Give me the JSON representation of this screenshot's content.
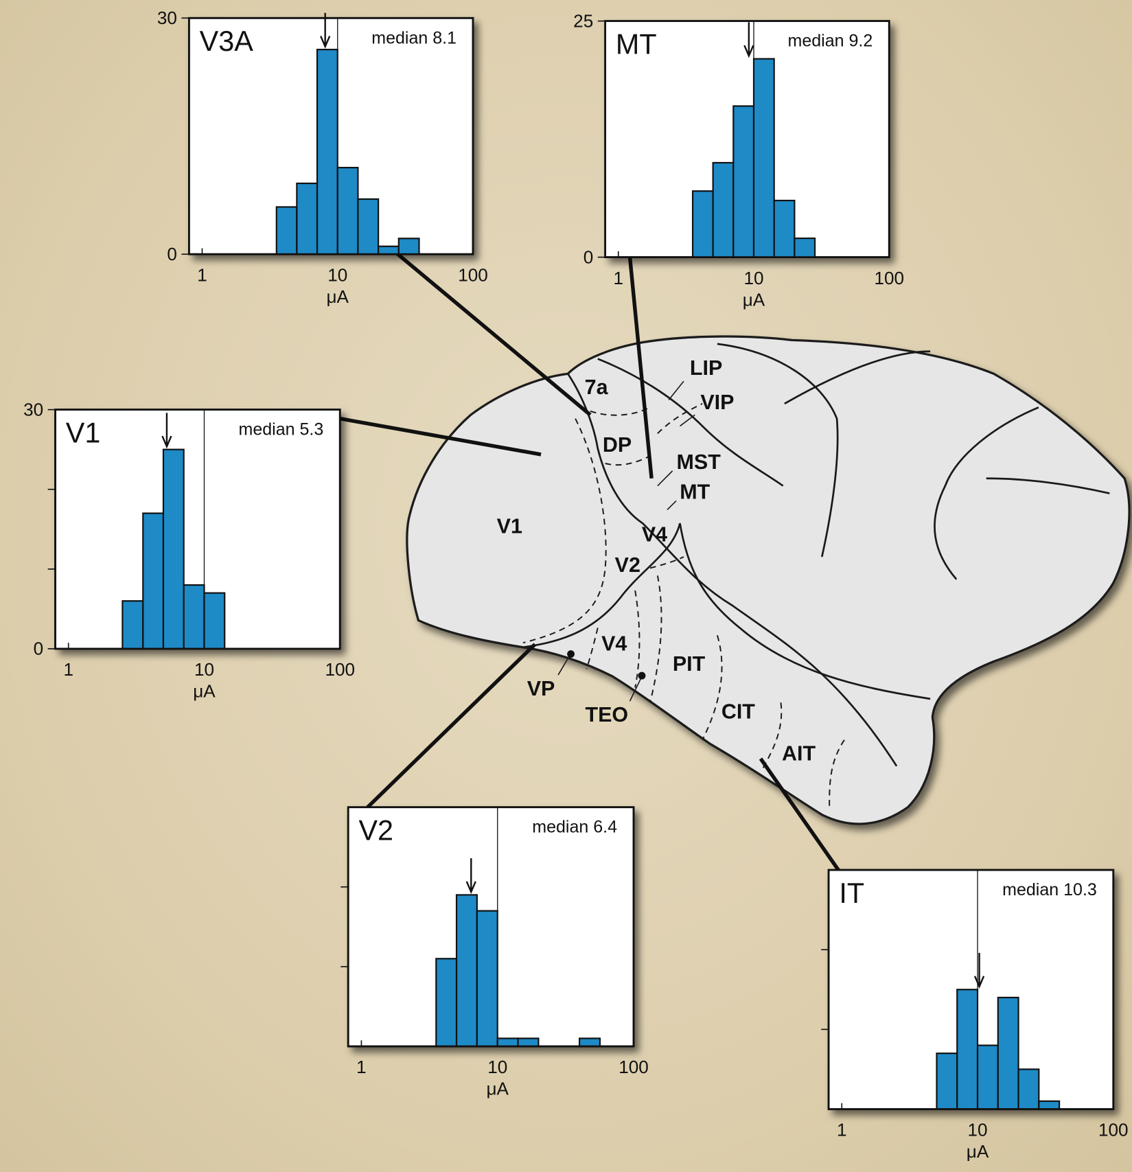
{
  "chart_data": [
    {
      "type": "histogram",
      "title": "V3A",
      "annotation": "median 8.1",
      "median": 8.1,
      "ref_x": 10,
      "xlabel": "μA",
      "xscale": "log",
      "xlim": [
        0.8,
        100
      ],
      "xticks": [
        1,
        10,
        100
      ],
      "ylim": [
        0,
        30
      ],
      "yticks": [
        0,
        30
      ],
      "color": "#1e8ac6",
      "bins": [
        3.54,
        5,
        7.07,
        10,
        14.14,
        20,
        28.28,
        40
      ],
      "counts": [
        6,
        9,
        26,
        11,
        7,
        1,
        2
      ]
    },
    {
      "type": "histogram",
      "title": "MT",
      "annotation": "median 9.2",
      "median": 9.2,
      "ref_x": 10,
      "xlabel": "μA",
      "xscale": "log",
      "xlim": [
        0.8,
        100
      ],
      "xticks": [
        1,
        10,
        100
      ],
      "ylim": [
        0,
        25
      ],
      "yticks": [
        0,
        25
      ],
      "color": "#1e8ac6",
      "bins": [
        3.54,
        5,
        7.07,
        10,
        14.14,
        20,
        28.28
      ],
      "counts": [
        7,
        10,
        16,
        21,
        6,
        2
      ]
    },
    {
      "type": "histogram",
      "title": "V1",
      "annotation": "median 5.3",
      "median": 5.3,
      "ref_x": 10,
      "xlabel": "μA",
      "xscale": "log",
      "xlim": [
        0.8,
        100
      ],
      "xticks": [
        1,
        10,
        100
      ],
      "ylim": [
        0,
        30
      ],
      "yticks": [
        0,
        30
      ],
      "minor_yticks": [
        10,
        20
      ],
      "color": "#1e8ac6",
      "bins": [
        2.5,
        3.54,
        5,
        7.07,
        10,
        14.14
      ],
      "counts": [
        6,
        17,
        25,
        8,
        7
      ]
    },
    {
      "type": "histogram",
      "title": "V2",
      "annotation": "median 6.4",
      "median": 6.4,
      "ref_x": 10,
      "xlabel": "μA",
      "xscale": "log",
      "xlim": [
        0.8,
        100
      ],
      "xticks": [
        1,
        10,
        100
      ],
      "ylim": [
        0,
        30
      ],
      "minor_yticks": [
        10,
        20
      ],
      "color": "#1e8ac6",
      "bins": [
        3.54,
        5,
        7.07,
        10,
        14.14,
        20,
        28.28,
        40,
        56.57
      ],
      "counts": [
        11,
        19,
        17,
        1,
        1,
        0,
        0,
        1
      ]
    },
    {
      "type": "histogram",
      "title": "IT",
      "annotation": "median 10.3",
      "median": 10.3,
      "ref_x": 10,
      "xlabel": "μA",
      "xscale": "log",
      "xlim": [
        0.8,
        100
      ],
      "xticks": [
        1,
        10,
        100
      ],
      "ylim": [
        0,
        30
      ],
      "minor_yticks": [
        10,
        20
      ],
      "color": "#1e8ac6",
      "bins": [
        5,
        7.07,
        10,
        14.14,
        20,
        28.28,
        40
      ],
      "counts": [
        7,
        15,
        8,
        14,
        5,
        1
      ]
    }
  ],
  "diagram": {
    "labels": [
      "7a",
      "LIP",
      "VIP",
      "DP",
      "MST",
      "MT",
      "V1",
      "V4",
      "V2",
      "V4",
      "PIT",
      "VP",
      "TEO",
      "CIT",
      "AIT"
    ]
  }
}
